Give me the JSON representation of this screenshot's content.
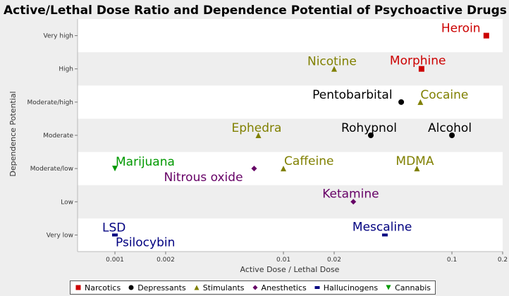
{
  "chart_data": {
    "type": "scatter",
    "title": "Active/Lethal Dose Ratio and Dependence Potential of Psychoactive Drugs",
    "xlabel": "Active Dose / Lethal Dose",
    "ylabel": "Dependence Potential",
    "x_scale": "log",
    "xlim": [
      0.0006,
      0.2
    ],
    "x_ticks": [
      {
        "value": 0.001,
        "label": "0.001"
      },
      {
        "value": 0.002,
        "label": "0.002"
      },
      {
        "value": 0.01,
        "label": "0.01"
      },
      {
        "value": 0.02,
        "label": "0.02"
      },
      {
        "value": 0.1,
        "label": "0.1"
      },
      {
        "value": 0.2,
        "label": "0.2"
      }
    ],
    "y_categories": [
      "Very low",
      "Low",
      "Moderate/low",
      "Moderate",
      "Moderate/high",
      "High",
      "Very high"
    ],
    "grid": "horizontal bands",
    "legend_position": "bottom",
    "series": [
      {
        "name": "Narcotics",
        "color": "#cc0000",
        "marker": "square",
        "points": [
          {
            "label": "Heroin",
            "x": 0.16,
            "y": "Very high"
          },
          {
            "label": "Morphine",
            "x": 0.066,
            "y": "High"
          }
        ]
      },
      {
        "name": "Depressants",
        "color": "#000000",
        "marker": "circle",
        "points": [
          {
            "label": "Pentobarbital",
            "x": 0.05,
            "y": "Moderate/high"
          },
          {
            "label": "Rohypnol",
            "x": 0.033,
            "y": "Moderate"
          },
          {
            "label": "Alcohol",
            "x": 0.1,
            "y": "Moderate"
          }
        ]
      },
      {
        "name": "Stimulants",
        "color": "#808000",
        "marker": "triangle-up",
        "points": [
          {
            "label": "Nicotine",
            "x": 0.02,
            "y": "High"
          },
          {
            "label": "Cocaine",
            "x": 0.065,
            "y": "Moderate/high"
          },
          {
            "label": "Ephedra",
            "x": 0.0071,
            "y": "Moderate"
          },
          {
            "label": "Caffeine",
            "x": 0.01,
            "y": "Moderate/low"
          },
          {
            "label": "MDMA",
            "x": 0.062,
            "y": "Moderate/low"
          }
        ]
      },
      {
        "name": "Anesthetics",
        "color": "#660066",
        "marker": "diamond",
        "points": [
          {
            "label": "Nitrous oxide",
            "x": 0.0067,
            "y": "Moderate/low"
          },
          {
            "label": "Ketamine",
            "x": 0.026,
            "y": "Low"
          }
        ]
      },
      {
        "name": "Hallucinogens",
        "color": "#000080",
        "marker": "rect",
        "points": [
          {
            "label": "LSD",
            "x": 0.001,
            "y": "Very low"
          },
          {
            "label": "Psilocybin",
            "x": 0.001,
            "y": "Very low"
          },
          {
            "label": "Mescaline",
            "x": 0.04,
            "y": "Very low"
          }
        ]
      },
      {
        "name": "Cannabis",
        "color": "#009900",
        "marker": "triangle-down",
        "points": [
          {
            "label": "Marijuana",
            "x": 0.001,
            "y": "Moderate/low"
          }
        ]
      }
    ]
  }
}
